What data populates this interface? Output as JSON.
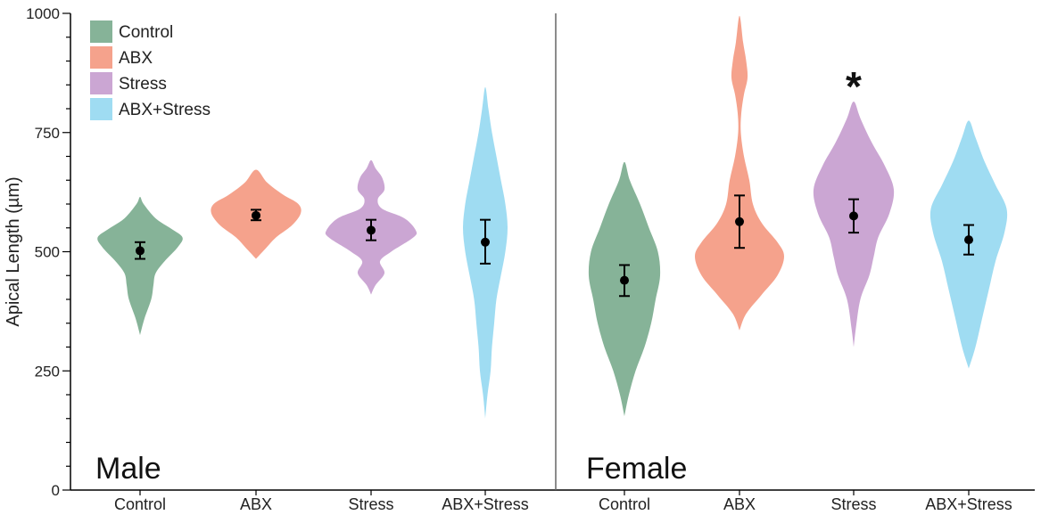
{
  "chart_data": {
    "type": "violin",
    "ylabel": "Apical Length (µm)",
    "ylim": [
      0,
      1000
    ],
    "y_ticks": [
      "0",
      "250",
      "500",
      "750",
      "1000"
    ],
    "categories": [
      "Control",
      "ABX",
      "Stress",
      "ABX+Stress",
      "Control",
      "ABX",
      "Stress",
      "ABX+Stress"
    ],
    "panels": [
      {
        "label": "Male",
        "groups": [
          0,
          1,
          2,
          3
        ]
      },
      {
        "label": "Female",
        "groups": [
          4,
          5,
          6,
          7
        ]
      }
    ],
    "legend": [
      {
        "name": "Control",
        "color": "#86b398"
      },
      {
        "name": "ABX",
        "color": "#f5a28c"
      },
      {
        "name": "Stress",
        "color": "#cba6d3"
      },
      {
        "name": "ABX+Stress",
        "color": "#9fdcf2"
      }
    ],
    "legend_position": "top-left",
    "groups": [
      {
        "panel": "Male",
        "name": "Control",
        "color": "#86b398",
        "mean": 502,
        "err_low": 485,
        "err_high": 520,
        "profile": [
          [
            325,
            0
          ],
          [
            360,
            0.1
          ],
          [
            400,
            0.25
          ],
          [
            430,
            0.3
          ],
          [
            455,
            0.35
          ],
          [
            480,
            0.55
          ],
          [
            510,
            0.85
          ],
          [
            530,
            0.95
          ],
          [
            548,
            0.7
          ],
          [
            570,
            0.35
          ],
          [
            600,
            0.08
          ],
          [
            615,
            0
          ]
        ]
      },
      {
        "panel": "Male",
        "name": "ABX",
        "color": "#f5a28c",
        "mean": 576,
        "err_low": 566,
        "err_high": 588,
        "profile": [
          [
            485,
            0
          ],
          [
            505,
            0.2
          ],
          [
            530,
            0.45
          ],
          [
            555,
            0.8
          ],
          [
            580,
            1.0
          ],
          [
            600,
            0.95
          ],
          [
            620,
            0.6
          ],
          [
            645,
            0.25
          ],
          [
            672,
            0
          ]
        ]
      },
      {
        "panel": "Male",
        "name": "Stress",
        "color": "#cba6d3",
        "mean": 545,
        "err_low": 524,
        "err_high": 567,
        "profile": [
          [
            410,
            0
          ],
          [
            430,
            0.1
          ],
          [
            455,
            0.3
          ],
          [
            480,
            0.2
          ],
          [
            500,
            0.45
          ],
          [
            530,
            0.95
          ],
          [
            545,
            1.0
          ],
          [
            570,
            0.75
          ],
          [
            590,
            0.25
          ],
          [
            610,
            0.15
          ],
          [
            630,
            0.3
          ],
          [
            655,
            0.25
          ],
          [
            675,
            0.1
          ],
          [
            692,
            0
          ]
        ]
      },
      {
        "panel": "Male",
        "name": "ABX+Stress",
        "color": "#9fdcf2",
        "mean": 520,
        "err_low": 475,
        "err_high": 567,
        "profile": [
          [
            150,
            0
          ],
          [
            200,
            0.05
          ],
          [
            250,
            0.12
          ],
          [
            300,
            0.15
          ],
          [
            350,
            0.2
          ],
          [
            400,
            0.25
          ],
          [
            450,
            0.35
          ],
          [
            500,
            0.45
          ],
          [
            550,
            0.5
          ],
          [
            600,
            0.45
          ],
          [
            650,
            0.35
          ],
          [
            700,
            0.25
          ],
          [
            750,
            0.15
          ],
          [
            800,
            0.07
          ],
          [
            845,
            0
          ]
        ]
      },
      {
        "panel": "Female",
        "name": "Control",
        "color": "#86b398",
        "mean": 440,
        "err_low": 407,
        "err_high": 472,
        "profile": [
          [
            155,
            0
          ],
          [
            200,
            0.1
          ],
          [
            250,
            0.25
          ],
          [
            300,
            0.45
          ],
          [
            350,
            0.6
          ],
          [
            400,
            0.7
          ],
          [
            450,
            0.8
          ],
          [
            500,
            0.75
          ],
          [
            550,
            0.55
          ],
          [
            600,
            0.35
          ],
          [
            650,
            0.12
          ],
          [
            688,
            0
          ]
        ]
      },
      {
        "panel": "Female",
        "name": "ABX",
        "color": "#f5a28c",
        "mean": 563,
        "err_low": 508,
        "err_high": 618,
        "profile": [
          [
            335,
            0
          ],
          [
            370,
            0.15
          ],
          [
            410,
            0.5
          ],
          [
            450,
            0.85
          ],
          [
            490,
            1.0
          ],
          [
            520,
            0.85
          ],
          [
            560,
            0.5
          ],
          [
            600,
            0.3
          ],
          [
            650,
            0.22
          ],
          [
            700,
            0.1
          ],
          [
            750,
            0.03
          ],
          [
            790,
            0.04
          ],
          [
            830,
            0.1
          ],
          [
            865,
            0.18
          ],
          [
            900,
            0.15
          ],
          [
            940,
            0.08
          ],
          [
            995,
            0
          ]
        ]
      },
      {
        "panel": "Female",
        "name": "Stress",
        "color": "#cba6d3",
        "mean": 575,
        "err_low": 540,
        "err_high": 610,
        "profile": [
          [
            300,
            0
          ],
          [
            340,
            0.05
          ],
          [
            400,
            0.15
          ],
          [
            450,
            0.35
          ],
          [
            490,
            0.45
          ],
          [
            530,
            0.55
          ],
          [
            580,
            0.8
          ],
          [
            630,
            0.9
          ],
          [
            680,
            0.7
          ],
          [
            730,
            0.4
          ],
          [
            780,
            0.15
          ],
          [
            815,
            0
          ]
        ]
      },
      {
        "panel": "Female",
        "name": "ABX+Stress",
        "color": "#9fdcf2",
        "mean": 525,
        "err_low": 494,
        "err_high": 556,
        "profile": [
          [
            255,
            0
          ],
          [
            300,
            0.15
          ],
          [
            360,
            0.3
          ],
          [
            420,
            0.45
          ],
          [
            480,
            0.6
          ],
          [
            540,
            0.8
          ],
          [
            590,
            0.85
          ],
          [
            640,
            0.6
          ],
          [
            690,
            0.35
          ],
          [
            740,
            0.15
          ],
          [
            775,
            0
          ]
        ]
      }
    ],
    "annotations": [
      {
        "text": "*",
        "group": 6
      }
    ]
  }
}
